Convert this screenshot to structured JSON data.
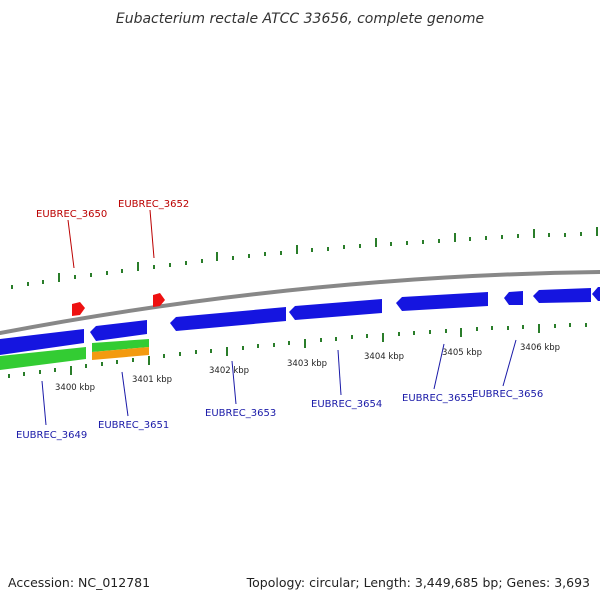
{
  "title": "Eubacterium rectale ATCC 33656, complete genome",
  "footer": {
    "accession": "Accession: NC_012781",
    "summary": "Topology: circular; Length: 3,449,685 bp; Genes: 3,693"
  },
  "scale_labels": [
    "3400 kbp",
    "3401 kbp",
    "3402 kbp",
    "3403 kbp",
    "3404 kbp",
    "3405 kbp",
    "3406 kbp"
  ],
  "gene_labels": {
    "EUBREC_3649": "EUBREC_3649",
    "EUBREC_3650": "EUBREC_3650",
    "EUBREC_3651": "EUBREC_3651",
    "EUBREC_3652": "EUBREC_3652",
    "EUBREC_3653": "EUBREC_3653",
    "EUBREC_3654": "EUBREC_3654",
    "EUBREC_3655": "EUBREC_3655",
    "EUBREC_3656": "EUBREC_3656"
  },
  "colors": {
    "genome_line": "#888888",
    "tick": "#2a7d2a",
    "blue_gene": "#1515e0",
    "red_gene": "#ee1111",
    "green_gene": "#33cc33",
    "orange_gene": "#f39a10",
    "label_red": "#bb0000",
    "label_blue": "#1a1aa8"
  }
}
